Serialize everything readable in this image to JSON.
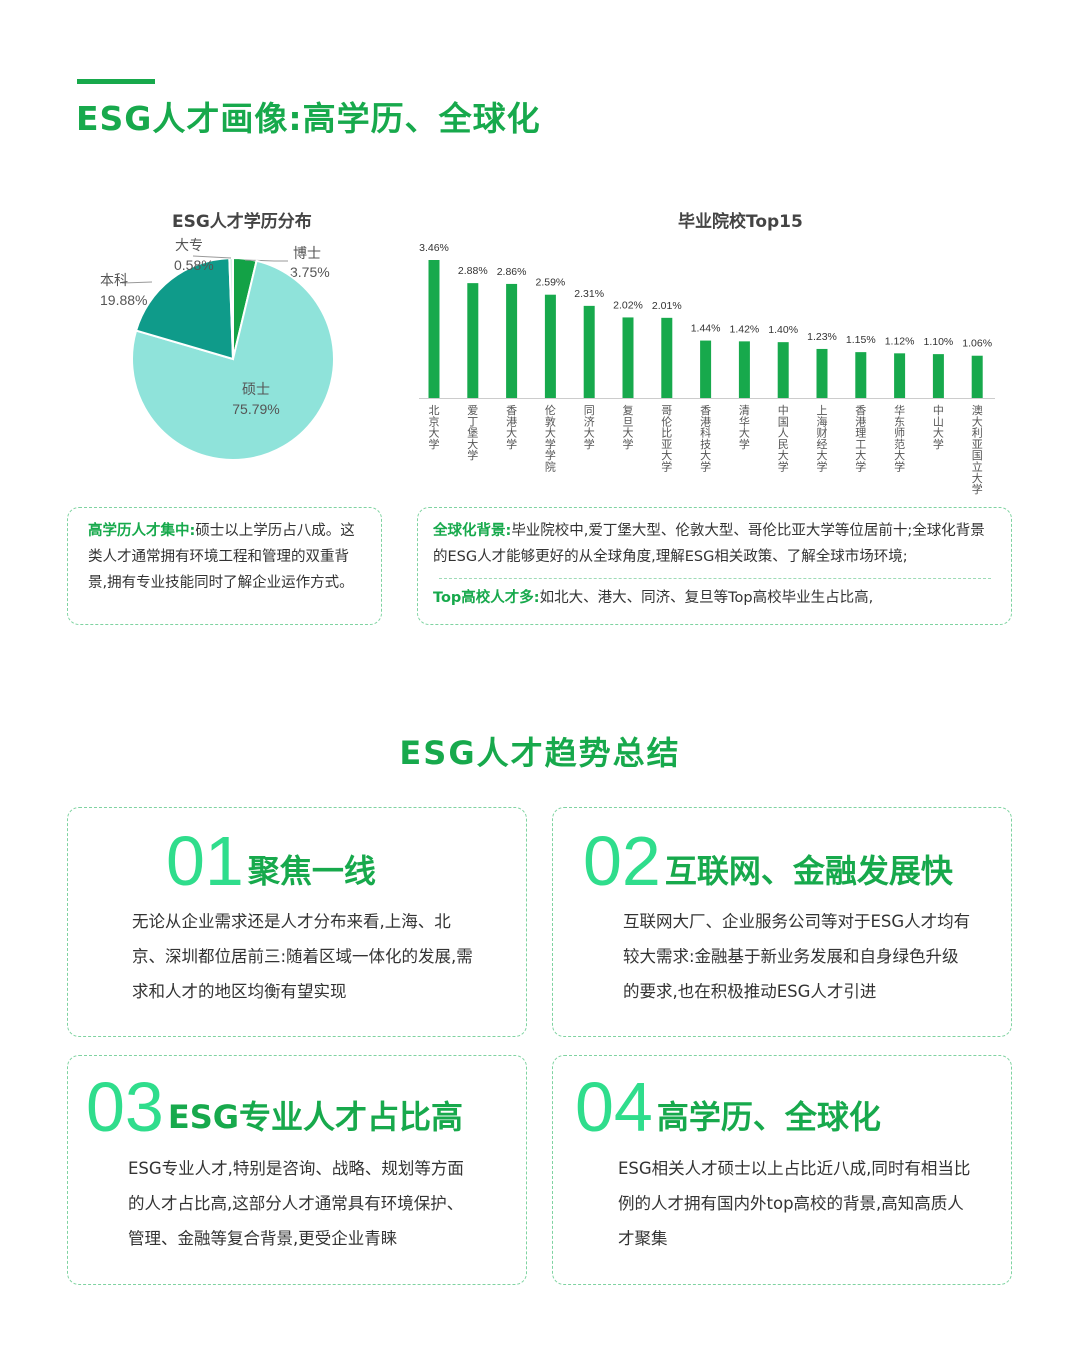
{
  "header": {
    "title": "ESG人才画像:高学历、全球化"
  },
  "charts": {
    "pie_title": "ESG人才学历分布",
    "bar_title": "毕业院校Top15"
  },
  "chart_data": [
    {
      "type": "pie",
      "title": "ESG人才学历分布",
      "slices": [
        {
          "label": "博士",
          "value": 3.75,
          "display": "3.75%",
          "color": "#13a246"
        },
        {
          "label": "硕士",
          "value": 75.79,
          "display": "75.79%",
          "color": "#8fe3da"
        },
        {
          "label": "本科",
          "value": 19.88,
          "display": "19.88%",
          "color": "#0f9b8a"
        },
        {
          "label": "大专",
          "value": 0.58,
          "display": "0.58%",
          "color": "#d6f2e6"
        }
      ]
    },
    {
      "type": "bar",
      "title": "毕业院校Top15",
      "categories": [
        "北京大学",
        "爱丁堡大学",
        "香港大学",
        "伦敦大学学院",
        "同济大学",
        "复旦大学",
        "哥伦比亚大学",
        "香港科技大学",
        "清华大学",
        "中国人民大学",
        "上海财经大学",
        "香港理工大学",
        "华东师范大学",
        "中山大学",
        "澳大利亚国立大学"
      ],
      "values": [
        3.46,
        2.88,
        2.86,
        2.59,
        2.31,
        2.02,
        2.01,
        1.44,
        1.42,
        1.4,
        1.23,
        1.15,
        1.12,
        1.1,
        1.06
      ],
      "value_labels": [
        "3.46%",
        "2.88%",
        "2.86%",
        "2.59%",
        "2.31%",
        "2.02%",
        "2.01%",
        "1.44%",
        "1.42%",
        "1.40%",
        "1.23%",
        "1.15%",
        "1.12%",
        "1.10%",
        "1.06%"
      ],
      "color": "#17a94c"
    }
  ],
  "notes": {
    "left": {
      "highlight": "高学历人才集中:",
      "text": "硕士以上学历占八成。这类人才通常拥有环境工程和管理的双重背景,拥有专业技能同时了解企业运作方式。"
    },
    "right": {
      "p1_highlight": "全球化背景:",
      "p1_text": "毕业院校中,爱丁堡大型、伦敦大型、哥伦比亚大学等位居前十;全球化背景的ESG人才能够更好的从全球角度,理解ESG相关政策、了解全球市场环境;",
      "p2_highlight": "Top高校人才多:",
      "p2_text": "如北大、港大、同济、复旦等Top高校毕业生占比高,"
    }
  },
  "trends": {
    "title": "ESG人才趋势总结",
    "cards": [
      {
        "num": "01",
        "title": "聚焦一线",
        "body": "无论从企业需求还是人才分布来看,上海、北京、深圳都位居前三:随着区域一体化的发展,需求和人才的地区均衡有望实现"
      },
      {
        "num": "02",
        "title": "互联网、金融发展快",
        "body": "互联网大厂、企业服务公司等对于ESG人才均有较大需求:金融基于新业务发展和自身绿色升级的要求,也在积极推动ESG人才引进"
      },
      {
        "num": "03",
        "title": "ESG专业人才占比高",
        "body": "ESG专业人才,特别是咨询、战略、规划等方面的人才占比高,这部分人才通常具有环境保护、管理、金融等复合背景,更受企业青睐"
      },
      {
        "num": "04",
        "title": "高学历、全球化",
        "body": "ESG相关人才硕士以上占比近八成,同时有相当比例的人才拥有国内外top高校的背景,高知高质人才聚集"
      }
    ]
  }
}
